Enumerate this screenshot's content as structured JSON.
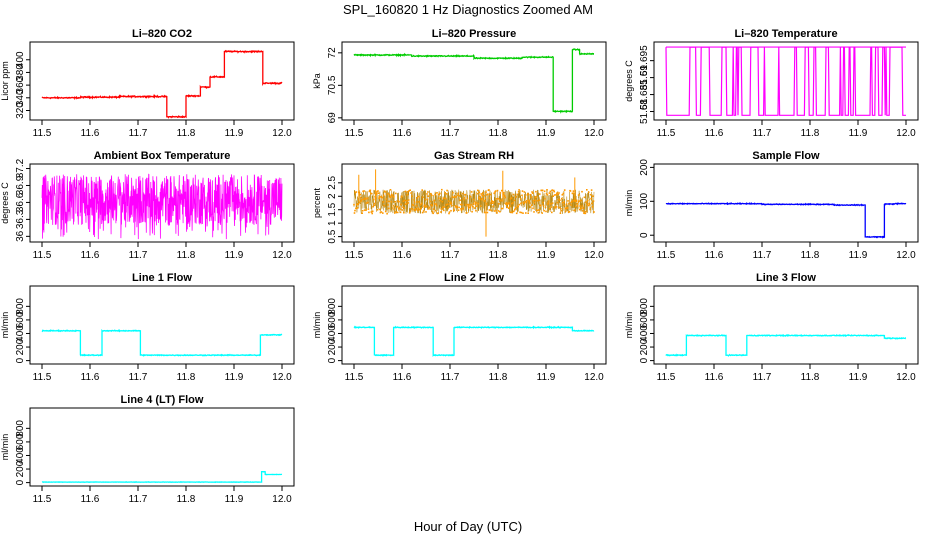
{
  "page": {
    "title": "SPL_160820  1 Hz Diagnostics Zoomed AM",
    "xlabel": "Hour of Day (UTC)"
  },
  "chart_data": [
    {
      "type": "line",
      "title": "Li–820 CO2",
      "ylabel": "Licor ppm",
      "color": "#ff0000",
      "xlim": [
        11.5,
        12.0
      ],
      "ylim": [
        305,
        428
      ],
      "yticks": [
        320,
        340,
        360,
        380,
        400
      ],
      "xticks": [
        "11.5",
        "11.6",
        "11.7",
        "11.8",
        "11.9",
        "12.0"
      ],
      "noise": 1.2,
      "series": [
        {
          "steps": [
            [
              11.5,
              340
            ],
            [
              11.58,
              341
            ],
            [
              11.66,
              342
            ],
            [
              11.76,
              310
            ],
            [
              11.8,
              343
            ],
            [
              11.83,
              357
            ],
            [
              11.85,
              373
            ],
            [
              11.88,
              413
            ],
            [
              11.96,
              363
            ],
            [
              12.0,
              363
            ]
          ]
        }
      ]
    },
    {
      "type": "line",
      "title": "Li–820 Pressure",
      "ylabel": "kPa",
      "color": "#00cc00",
      "xlim": [
        11.5,
        12.0
      ],
      "ylim": [
        68.9,
        72.5
      ],
      "yticks": [
        69.0,
        70.5,
        72.0
      ],
      "xticks": [
        "11.5",
        "11.6",
        "11.7",
        "11.8",
        "11.9",
        "12.0"
      ],
      "noise": 0.03,
      "series": [
        {
          "steps": [
            [
              11.5,
              71.9
            ],
            [
              11.62,
              71.85
            ],
            [
              11.75,
              71.75
            ],
            [
              11.85,
              71.8
            ],
            [
              11.915,
              69.3
            ],
            [
              11.955,
              72.15
            ],
            [
              11.97,
              71.95
            ],
            [
              12.0,
              71.95
            ]
          ]
        }
      ]
    },
    {
      "type": "line",
      "title": "Li–820 Temperature",
      "ylabel": "degrees C",
      "color": "#ff00ff",
      "xlim": [
        11.5,
        12.0
      ],
      "ylim": [
        51.6775,
        51.7005
      ],
      "yticks": [
        51.68,
        51.685,
        51.69,
        51.695
      ],
      "xticks": [
        "11.5",
        "11.6",
        "11.7",
        "11.8",
        "11.9",
        "12.0"
      ],
      "noise": 0,
      "series": [
        {
          "binary": [
            51.6789,
            51.699
          ],
          "switch_prob": 0.09
        }
      ]
    },
    {
      "type": "line",
      "title": "Ambient Box Temperature",
      "ylabel": "degrees C",
      "color": "#ff00ff",
      "xlim": [
        11.5,
        12.0
      ],
      "ylim": [
        35.9,
        37.28
      ],
      "yticks": [
        36.0,
        36.3,
        36.6,
        36.9,
        37.2
      ],
      "xticks": [
        "11.5",
        "11.6",
        "11.7",
        "11.8",
        "11.9",
        "12.0"
      ],
      "noise": 0,
      "series": [
        {
          "band": [
            36.2,
            37.1
          ],
          "spike_low": 35.95
        }
      ]
    },
    {
      "type": "scatter",
      "title": "Gas Stream RH",
      "ylabel": "percent",
      "color": "#ff9900",
      "color2": "#b8860b",
      "xlim": [
        11.5,
        12.0
      ],
      "ylim": [
        0.3,
        3.2
      ],
      "yticks": [
        0.5,
        1.0,
        1.5,
        2.0,
        2.5
      ],
      "xticks": [
        "11.5",
        "11.6",
        "11.7",
        "11.8",
        "11.9",
        "12.0"
      ],
      "noise": 0,
      "series": [
        {
          "band": [
            1.35,
            2.25
          ],
          "spikes": [
            [
              11.545,
              3.0
            ],
            [
              11.775,
              0.5
            ],
            [
              11.81,
              2.95
            ],
            [
              11.96,
              2.7
            ],
            [
              11.51,
              2.8
            ]
          ]
        }
      ]
    },
    {
      "type": "line",
      "title": "Sample Flow",
      "ylabel": "ml/min",
      "color": "#0000ff",
      "xlim": [
        11.5,
        12.0
      ],
      "ylim": [
        -20,
        210
      ],
      "yticks": [
        0,
        100,
        200
      ],
      "xticks": [
        "11.5",
        "11.6",
        "11.7",
        "11.8",
        "11.9",
        "12.0"
      ],
      "noise": 1.5,
      "series": [
        {
          "steps": [
            [
              11.5,
              93
            ],
            [
              11.7,
              91
            ],
            [
              11.85,
              89
            ],
            [
              11.915,
              -5
            ],
            [
              11.955,
              92
            ],
            [
              11.975,
              93
            ],
            [
              12.0,
              93
            ]
          ]
        }
      ]
    },
    {
      "type": "line",
      "title": "Line 1 Flow",
      "ylabel": "ml/min",
      "color": "#00ffff",
      "xlim": [
        11.5,
        12.0
      ],
      "ylim": [
        -50,
        1100
      ],
      "yticks": [
        0,
        200,
        400,
        600,
        800
      ],
      "xticks": [
        "11.5",
        "11.6",
        "11.7",
        "11.8",
        "11.9",
        "12.0"
      ],
      "noise": 8,
      "series": [
        {
          "steps": [
            [
              11.5,
              440
            ],
            [
              11.58,
              80
            ],
            [
              11.625,
              440
            ],
            [
              11.705,
              80
            ],
            [
              11.955,
              380
            ],
            [
              12.0,
              380
            ]
          ]
        }
      ]
    },
    {
      "type": "line",
      "title": "Line 2 Flow",
      "ylabel": "ml/min",
      "color": "#00ffff",
      "xlim": [
        11.5,
        12.0
      ],
      "ylim": [
        -50,
        1100
      ],
      "yticks": [
        0,
        200,
        400,
        600,
        800
      ],
      "xticks": [
        "11.5",
        "11.6",
        "11.7",
        "11.8",
        "11.9",
        "12.0"
      ],
      "noise": 8,
      "series": [
        {
          "steps": [
            [
              11.5,
              490
            ],
            [
              11.542,
              80
            ],
            [
              11.582,
              490
            ],
            [
              11.665,
              80
            ],
            [
              11.708,
              490
            ],
            [
              11.955,
              440
            ],
            [
              12.0,
              440
            ]
          ]
        }
      ]
    },
    {
      "type": "line",
      "title": "Line 3 Flow",
      "ylabel": "ml/min",
      "color": "#00ffff",
      "xlim": [
        11.5,
        12.0
      ],
      "ylim": [
        -50,
        1100
      ],
      "yticks": [
        0,
        200,
        400,
        600,
        800
      ],
      "xticks": [
        "11.5",
        "11.6",
        "11.7",
        "11.8",
        "11.9",
        "12.0"
      ],
      "noise": 8,
      "series": [
        {
          "steps": [
            [
              11.5,
              80
            ],
            [
              11.542,
              370
            ],
            [
              11.625,
              80
            ],
            [
              11.668,
              370
            ],
            [
              11.955,
              330
            ],
            [
              12.0,
              330
            ]
          ]
        }
      ]
    },
    {
      "type": "line",
      "title": "Line 4 (LT) Flow",
      "ylabel": "ml/min",
      "color": "#00ffff",
      "xlim": [
        11.5,
        12.0
      ],
      "ylim": [
        -50,
        1100
      ],
      "yticks": [
        0,
        200,
        400,
        600,
        800
      ],
      "xticks": [
        "11.5",
        "11.6",
        "11.7",
        "11.8",
        "11.9",
        "12.0"
      ],
      "noise": 3,
      "series": [
        {
          "steps": [
            [
              11.5,
              8
            ],
            [
              11.957,
              160
            ],
            [
              11.965,
              120
            ],
            [
              12.0,
              120
            ]
          ]
        }
      ]
    }
  ]
}
